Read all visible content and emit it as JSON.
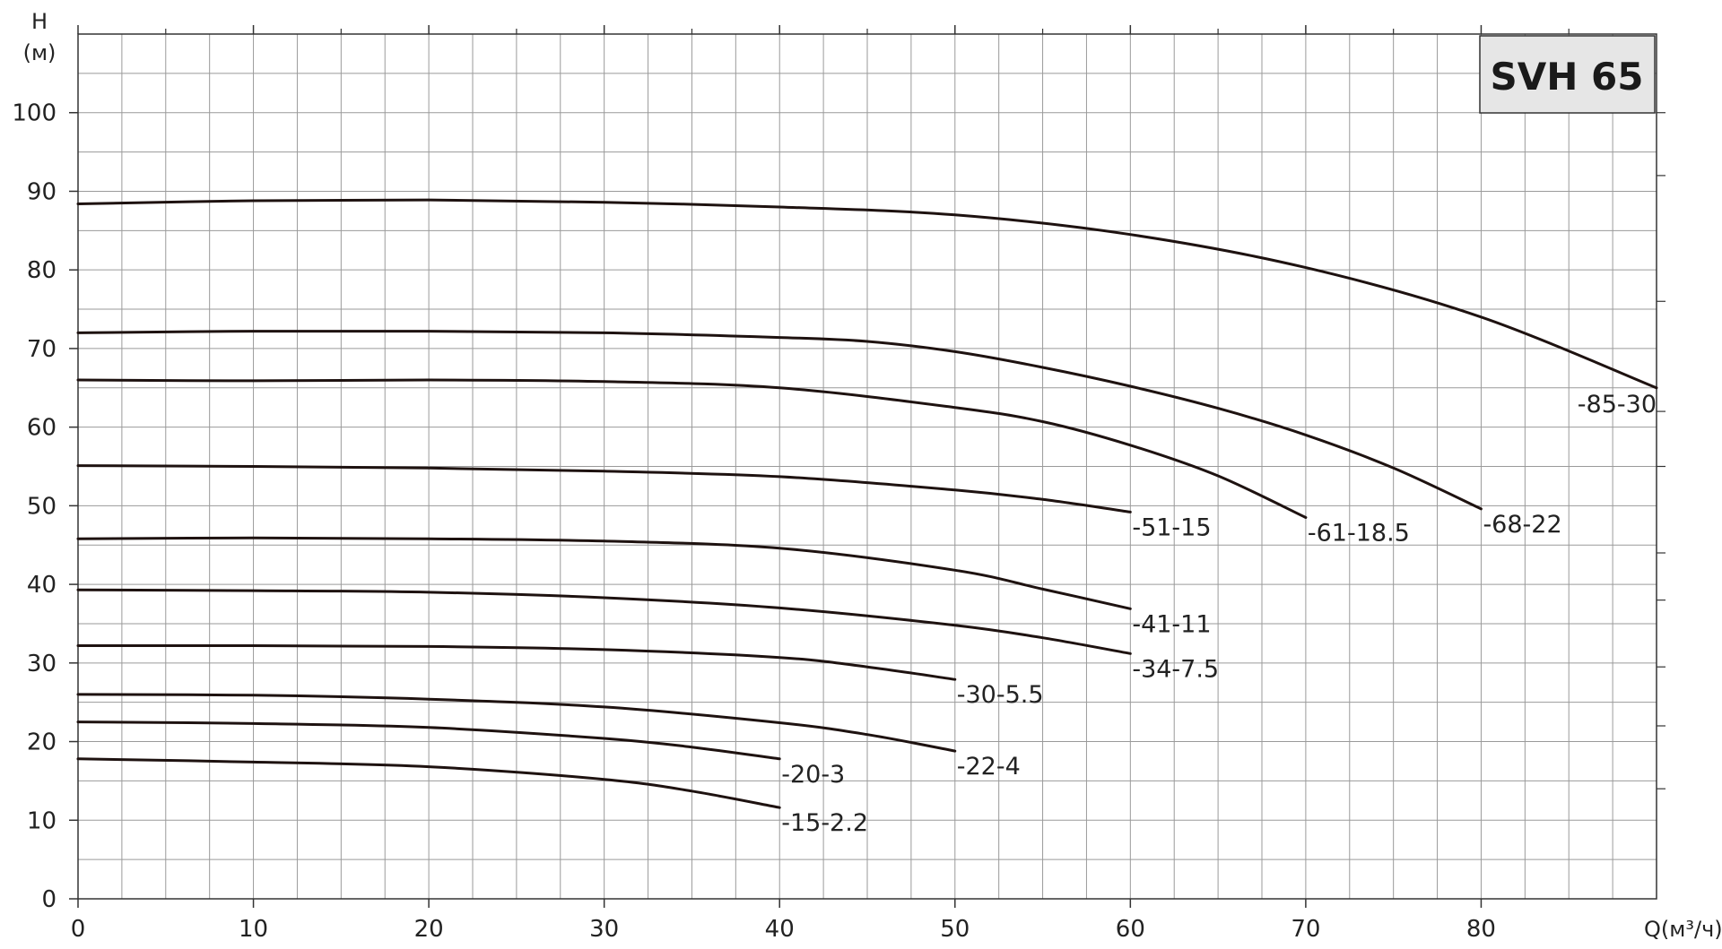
{
  "chart_data": {
    "type": "line",
    "title": "SVH 65",
    "ylabel_line1": "H",
    "ylabel_line2": "(м)",
    "xlabel": "Q(м³/ч)",
    "xlim": [
      0,
      90
    ],
    "ylim": [
      0,
      110
    ],
    "x_ticks": [
      0,
      10,
      20,
      30,
      40,
      50,
      60,
      70,
      80
    ],
    "y_ticks": [
      0,
      10,
      20,
      30,
      40,
      50,
      60,
      70,
      80,
      90,
      100
    ],
    "x_tick_labels": [
      "0",
      "10",
      "20",
      "30",
      "40",
      "50",
      "60",
      "70",
      "80"
    ],
    "y_tick_labels": [
      "0",
      "10",
      "20",
      "30",
      "40",
      "50",
      "60",
      "70",
      "80",
      "90",
      "100"
    ],
    "grid": true,
    "series": [
      {
        "label": "-85-30",
        "points": [
          [
            0,
            88.4
          ],
          [
            10,
            88.8
          ],
          [
            20,
            88.9
          ],
          [
            30,
            88.6
          ],
          [
            40,
            88.0
          ],
          [
            50,
            87.0
          ],
          [
            60,
            84.5
          ],
          [
            70,
            80.3
          ],
          [
            80,
            74.0
          ],
          [
            90,
            65.0
          ]
        ]
      },
      {
        "label": "-68-22",
        "points": [
          [
            0,
            72.0
          ],
          [
            10,
            72.2
          ],
          [
            20,
            72.2
          ],
          [
            30,
            72.0
          ],
          [
            40,
            71.4
          ],
          [
            45,
            70.9
          ],
          [
            50,
            69.6
          ],
          [
            55,
            67.6
          ],
          [
            60,
            65.2
          ],
          [
            65,
            62.4
          ],
          [
            70,
            59.0
          ],
          [
            75,
            54.8
          ],
          [
            80,
            49.6
          ]
        ]
      },
      {
        "label": "-61-18.5",
        "points": [
          [
            0,
            66.0
          ],
          [
            10,
            65.9
          ],
          [
            20,
            66.0
          ],
          [
            30,
            65.8
          ],
          [
            40,
            65.0
          ],
          [
            50,
            62.5
          ],
          [
            55,
            60.7
          ],
          [
            60,
            57.7
          ],
          [
            65,
            53.8
          ],
          [
            70,
            48.5
          ]
        ]
      },
      {
        "label": "-51-15",
        "points": [
          [
            0,
            55.1
          ],
          [
            10,
            55.0
          ],
          [
            20,
            54.8
          ],
          [
            30,
            54.4
          ],
          [
            40,
            53.7
          ],
          [
            50,
            52.0
          ],
          [
            55,
            50.8
          ],
          [
            60,
            49.2
          ]
        ]
      },
      {
        "label": "-41-11",
        "points": [
          [
            0,
            45.8
          ],
          [
            10,
            45.9
          ],
          [
            20,
            45.8
          ],
          [
            30,
            45.5
          ],
          [
            40,
            44.6
          ],
          [
            50,
            41.8
          ],
          [
            55,
            39.4
          ],
          [
            60,
            36.9
          ]
        ]
      },
      {
        "label": "-34-7.5",
        "points": [
          [
            0,
            39.3
          ],
          [
            10,
            39.2
          ],
          [
            20,
            39.0
          ],
          [
            30,
            38.3
          ],
          [
            40,
            37.0
          ],
          [
            50,
            34.8
          ],
          [
            55,
            33.2
          ],
          [
            60,
            31.2
          ]
        ]
      },
      {
        "label": "-30-5.5",
        "points": [
          [
            0,
            32.2
          ],
          [
            10,
            32.2
          ],
          [
            20,
            32.1
          ],
          [
            30,
            31.7
          ],
          [
            40,
            30.7
          ],
          [
            45,
            29.5
          ],
          [
            50,
            27.9
          ]
        ]
      },
      {
        "label": "-22-4",
        "points": [
          [
            0,
            26.0
          ],
          [
            10,
            25.9
          ],
          [
            20,
            25.4
          ],
          [
            30,
            24.4
          ],
          [
            40,
            22.4
          ],
          [
            45,
            20.9
          ],
          [
            50,
            18.8
          ]
        ]
      },
      {
        "label": "-20-3",
        "points": [
          [
            0,
            22.5
          ],
          [
            10,
            22.3
          ],
          [
            20,
            21.8
          ],
          [
            30,
            20.4
          ],
          [
            35,
            19.3
          ],
          [
            40,
            17.8
          ]
        ]
      },
      {
        "label": "-15-2.2",
        "points": [
          [
            0,
            17.8
          ],
          [
            10,
            17.4
          ],
          [
            20,
            16.8
          ],
          [
            30,
            15.2
          ],
          [
            35,
            13.7
          ],
          [
            40,
            11.6
          ]
        ]
      }
    ]
  }
}
